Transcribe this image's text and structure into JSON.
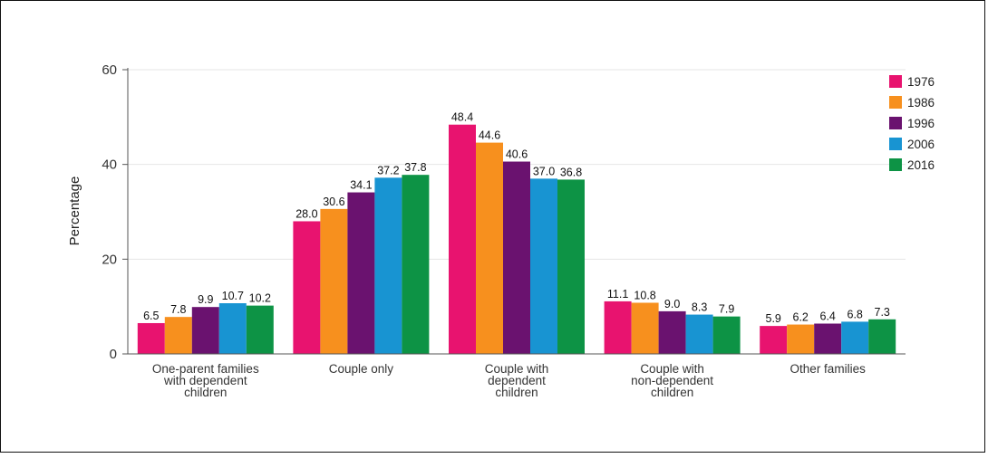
{
  "chart_data": {
    "type": "bar",
    "title": "",
    "xlabel": "",
    "ylabel": "Percentage",
    "ylim": [
      0,
      60
    ],
    "yticks": [
      0,
      20,
      40,
      60
    ],
    "grid": true,
    "legend_position": "top-right",
    "categories": [
      [
        "One-parent families",
        "with dependent",
        "children"
      ],
      [
        "Couple only"
      ],
      [
        "Couple with",
        "dependent",
        "children"
      ],
      [
        "Couple with",
        "non-dependent",
        "children"
      ],
      [
        "Other families"
      ]
    ],
    "series": [
      {
        "name": "1976",
        "color": "#e8136f",
        "values": [
          6.5,
          28.0,
          48.4,
          11.1,
          5.9
        ]
      },
      {
        "name": "1986",
        "color": "#f7901e",
        "values": [
          7.8,
          30.6,
          44.6,
          10.8,
          6.2
        ]
      },
      {
        "name": "1996",
        "color": "#6a126f",
        "values": [
          9.9,
          34.1,
          40.6,
          9.0,
          6.4
        ]
      },
      {
        "name": "2006",
        "color": "#1894d2",
        "values": [
          10.7,
          37.2,
          37.0,
          8.3,
          6.8
        ]
      },
      {
        "name": "2016",
        "color": "#0d9345",
        "values": [
          10.2,
          37.8,
          36.8,
          7.9,
          7.3
        ]
      }
    ]
  }
}
